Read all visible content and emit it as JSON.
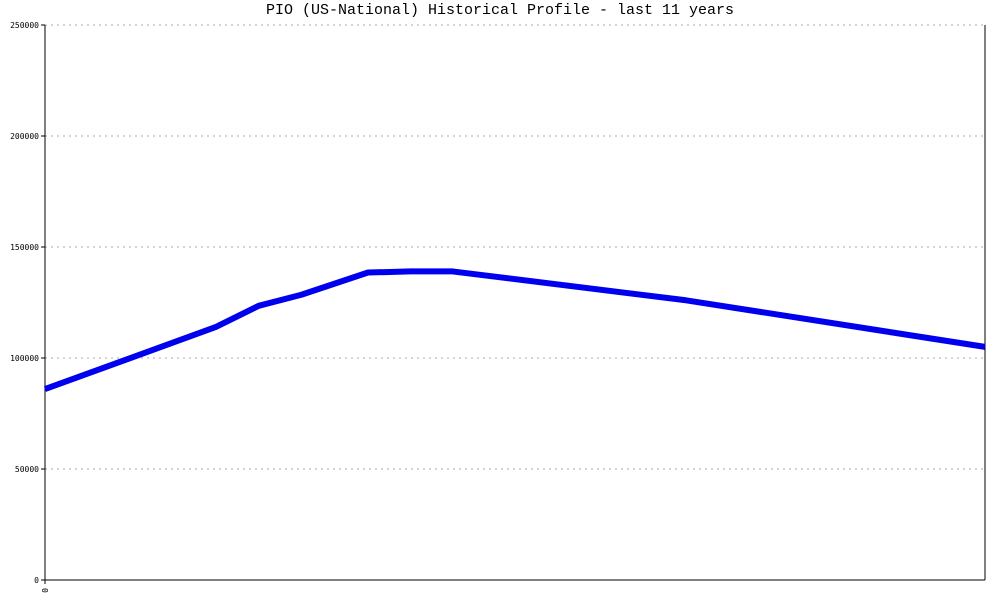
{
  "chart_data": {
    "type": "line",
    "title": "PIO (US-National) Historical Profile - last 11 years",
    "x": [
      0,
      2,
      2.5,
      3,
      3.78,
      4.28,
      4.77,
      7.5,
      11
    ],
    "series": [
      {
        "name": "PIO",
        "color": "#0000ee",
        "values": [
          86000,
          114000,
          123500,
          128500,
          138500,
          139000,
          139000,
          126000,
          105000
        ]
      }
    ],
    "xlim": [
      0,
      11
    ],
    "xticks": [
      0
    ],
    "ylim": [
      0,
      250000
    ],
    "yticks": [
      0,
      50000,
      100000,
      150000,
      200000,
      250000
    ],
    "grid": true
  }
}
